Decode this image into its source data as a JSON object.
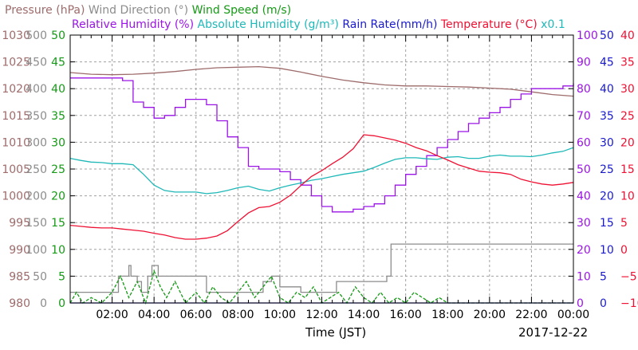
{
  "colors": {
    "pressure": "#9e6b6b",
    "wind_direction": "#8c8c8c",
    "wind_speed": "#159a15",
    "relative_humidity": "#9b14e6",
    "absolute_humidity": "#1fb8b8",
    "rain_rate": "#1a1acc",
    "temperature": "#ee1133",
    "grid": "#a0a0a0",
    "frame": "#000000"
  },
  "header": {
    "row1": [
      {
        "text": "Pressure (hPa)",
        "color": "#9e6b6b"
      },
      {
        "text": "Wind Direction (°)",
        "color": "#8c8c8c"
      },
      {
        "text": "Wind Speed (m/s)",
        "color": "#159a15"
      }
    ],
    "row2": [
      {
        "text": "Relative Humidity (%)",
        "color": "#9b14e6"
      },
      {
        "text": "Absolute Humidity (g/m³)",
        "color": "#1fb8b8"
      },
      {
        "text": "Rain Rate(mm/h)",
        "color": "#1a1acc"
      },
      {
        "text": "Temperature (°C)",
        "color": "#ee1133"
      },
      {
        "text": "x0.1",
        "color": "#1fb8b8"
      }
    ]
  },
  "footer": {
    "xlabel": "Time (JST)",
    "date": "2017-12-22"
  },
  "chart_data": {
    "type": "line",
    "x_tick_labels": [
      "02:00",
      "04:00",
      "06:00",
      "08:00",
      "10:00",
      "12:00",
      "14:00",
      "16:00",
      "18:00",
      "20:00",
      "22:00",
      "00:00"
    ],
    "x_range_hours": [
      0,
      24
    ],
    "grid": true,
    "left_axes": [
      {
        "name": "pressure",
        "color": "#9e6b6b",
        "range": [
          980,
          1030
        ],
        "ticks": [
          "980",
          "985",
          "990",
          "995",
          "1000",
          "1005",
          "1010",
          "1015",
          "1020",
          "1025",
          "1030"
        ]
      },
      {
        "name": "wind_direction",
        "color": "#8c8c8c",
        "range": [
          0,
          500
        ],
        "ticks": [
          "0",
          "50",
          "100",
          "150",
          "200",
          "250",
          "300",
          "350",
          "400",
          "450",
          "500"
        ]
      },
      {
        "name": "wind_speed",
        "color": "#159a15",
        "range": [
          0,
          50
        ],
        "ticks": [
          "0",
          "5",
          "10",
          "15",
          "20",
          "25",
          "30",
          "35",
          "40",
          "45",
          "50"
        ]
      }
    ],
    "right_axes": [
      {
        "name": "relative_humidity",
        "color": "#9b14e6",
        "range": [
          0,
          100
        ],
        "ticks": [
          "0",
          "10",
          "20",
          "30",
          "40",
          "50",
          "60",
          "70",
          "80",
          "90",
          "100"
        ]
      },
      {
        "name": "rain_rate",
        "color": "#1a1acc",
        "range": [
          0,
          50
        ],
        "ticks": [
          "0",
          "5",
          "10",
          "15",
          "20",
          "25",
          "30",
          "35",
          "40",
          "45",
          "50"
        ]
      },
      {
        "name": "temperature",
        "color": "#ee1133",
        "range": [
          -10,
          40
        ],
        "ticks": [
          "−10",
          "−5",
          "0",
          "5",
          "10",
          "15",
          "20",
          "25",
          "30",
          "35",
          "40"
        ]
      }
    ],
    "series": [
      {
        "key": "pressure",
        "color": "#9e6b6b",
        "axis_range": [
          980,
          1030
        ],
        "step": false,
        "x": [
          0,
          1,
          2,
          3,
          4,
          5,
          6,
          7,
          8,
          9,
          10,
          11,
          12,
          13,
          14,
          15,
          16,
          17,
          18,
          19,
          20,
          21,
          22,
          23,
          24
        ],
        "y": [
          1023,
          1022.7,
          1022.6,
          1022.7,
          1022.9,
          1023.2,
          1023.6,
          1023.9,
          1024.0,
          1024.1,
          1023.8,
          1023.1,
          1022.3,
          1021.6,
          1021.1,
          1020.7,
          1020.5,
          1020.5,
          1020.4,
          1020.3,
          1020.1,
          1019.9,
          1019.4,
          1018.9,
          1018.6
        ]
      },
      {
        "key": "wind_direction",
        "color": "#8c8c8c",
        "axis_range": [
          0,
          500
        ],
        "step": true,
        "x": [
          0,
          0.6,
          0.8,
          1.0,
          1.5,
          2.3,
          2.8,
          2.9,
          3.2,
          3.4,
          3.7,
          3.9,
          4.2,
          6.0,
          6.5,
          7.5,
          8.0,
          8.5,
          9.2,
          9.6,
          10.0,
          11.0,
          12.0,
          12.7,
          15.1,
          15.3,
          24
        ],
        "y": [
          20,
          20,
          20,
          20,
          20,
          50,
          70,
          50,
          40,
          20,
          50,
          70,
          50,
          50,
          20,
          20,
          20,
          20,
          40,
          50,
          30,
          20,
          20,
          40,
          50,
          110,
          110
        ]
      },
      {
        "key": "wind_speed",
        "color": "#159a15",
        "axis_range": [
          0,
          50
        ],
        "step": false,
        "x": [
          0,
          0.3,
          0.6,
          1.0,
          1.5,
          2.0,
          2.4,
          2.8,
          3.2,
          3.6,
          4.0,
          4.3,
          4.6,
          5.0,
          5.5,
          6.0,
          6.4,
          6.8,
          7.2,
          7.6,
          8.0,
          8.4,
          8.8,
          9.2,
          9.6,
          10.0,
          10.4,
          10.8,
          11.2,
          11.6,
          12.0,
          12.4,
          12.8,
          13.2,
          13.6,
          14.0,
          14.4,
          14.8,
          15.2,
          15.6,
          16.0,
          16.4,
          16.8,
          17.2,
          17.6,
          18,
          20,
          22,
          24
        ],
        "y": [
          0,
          2,
          0,
          1,
          0,
          2,
          5,
          1,
          4,
          0,
          6,
          3,
          1,
          4,
          0,
          2,
          0,
          3,
          1,
          0,
          2,
          4,
          1,
          3,
          5,
          1,
          0,
          2,
          1,
          3,
          0,
          1,
          2,
          0,
          3,
          1,
          0,
          2,
          0,
          1,
          0,
          2,
          1,
          0,
          1,
          0,
          0,
          0,
          0
        ]
      },
      {
        "key": "relative_humidity",
        "color": "#9b14e6",
        "axis_range": [
          0,
          100
        ],
        "step": true,
        "x": [
          0,
          2,
          2.5,
          3,
          3.5,
          4,
          4.5,
          5,
          5.5,
          6,
          6.5,
          7,
          7.5,
          8,
          8.5,
          9,
          9.5,
          10,
          10.5,
          11,
          11.5,
          12,
          12.5,
          13,
          13.5,
          14,
          14.5,
          15,
          15.5,
          16,
          16.5,
          17,
          17.5,
          18,
          18.5,
          19,
          19.5,
          20,
          20.5,
          21,
          21.5,
          22,
          22.5,
          23,
          23.5,
          24
        ],
        "y": [
          84,
          84,
          83,
          75,
          73,
          69,
          70,
          73,
          76,
          76,
          74,
          68,
          62,
          58,
          51,
          50,
          50,
          49,
          46,
          44,
          40,
          36,
          34,
          34,
          35,
          36,
          37,
          40,
          44,
          48,
          51,
          55,
          58,
          61,
          64,
          67,
          69,
          71,
          73,
          76,
          78,
          80,
          80,
          80,
          81,
          82
        ]
      },
      {
        "key": "absolute_humidity",
        "color": "#1fb8b8",
        "axis_range": [
          0,
          50
        ],
        "step": false,
        "x": [
          0,
          0.5,
          1,
          1.5,
          2,
          2.5,
          3,
          3.5,
          4,
          4.5,
          5,
          5.5,
          6,
          6.5,
          7,
          7.5,
          8,
          8.5,
          9,
          9.5,
          10,
          10.5,
          11,
          11.5,
          12,
          12.5,
          13,
          13.5,
          14,
          14.5,
          15,
          15.5,
          16,
          16.5,
          17,
          17.5,
          18,
          18.5,
          19,
          19.5,
          20,
          20.5,
          21,
          21.5,
          22,
          22.5,
          23,
          23.5,
          24
        ],
        "y": [
          27,
          26.6,
          26.3,
          26.2,
          26.0,
          26.0,
          25.8,
          24,
          22,
          21,
          20.7,
          20.7,
          20.7,
          20.4,
          20.6,
          21.0,
          21.5,
          21.8,
          21.2,
          20.9,
          21.5,
          22.0,
          22.4,
          22.9,
          23.2,
          23.6,
          24.0,
          24.3,
          24.6,
          25.3,
          26.1,
          26.8,
          27.1,
          27.1,
          26.9,
          26.8,
          27.2,
          27.3,
          27.0,
          27.0,
          27.4,
          27.6,
          27.4,
          27.4,
          27.3,
          27.6,
          28.0,
          28.3,
          29.0
        ]
      },
      {
        "key": "temperature",
        "color": "#ee1133",
        "axis_range": [
          -10,
          40
        ],
        "step": false,
        "x": [
          0,
          0.5,
          1,
          1.5,
          2,
          2.5,
          3,
          3.5,
          4,
          4.5,
          5,
          5.5,
          6,
          6.5,
          7,
          7.5,
          8,
          8.5,
          9,
          9.5,
          10,
          10.5,
          11,
          11.5,
          12,
          12.5,
          13,
          13.5,
          14,
          14.5,
          15,
          15.5,
          16,
          16.5,
          17,
          17.5,
          18,
          18.5,
          19,
          19.5,
          20,
          20.5,
          21,
          21.5,
          22,
          22.5,
          23,
          23.5,
          24
        ],
        "y": [
          4.5,
          4.3,
          4.1,
          4.0,
          4.0,
          3.8,
          3.6,
          3.4,
          3.0,
          2.7,
          2.2,
          1.9,
          1.9,
          2.1,
          2.5,
          3.5,
          5.2,
          6.8,
          7.8,
          8.0,
          8.8,
          10.1,
          11.9,
          13.6,
          14.7,
          16.0,
          17.2,
          18.8,
          21.4,
          21.2,
          20.8,
          20.4,
          19.8,
          19.0,
          18.4,
          17.5,
          16.7,
          15.8,
          15.2,
          14.6,
          14.4,
          14.3,
          14.0,
          13.1,
          12.6,
          12.2,
          12.0,
          12.2,
          12.5
        ]
      },
      {
        "key": "rain_rate",
        "color": "#1a1acc",
        "axis_range": [
          0,
          50
        ],
        "step": false,
        "x": [
          0,
          24
        ],
        "y": [
          0,
          0
        ]
      }
    ]
  }
}
